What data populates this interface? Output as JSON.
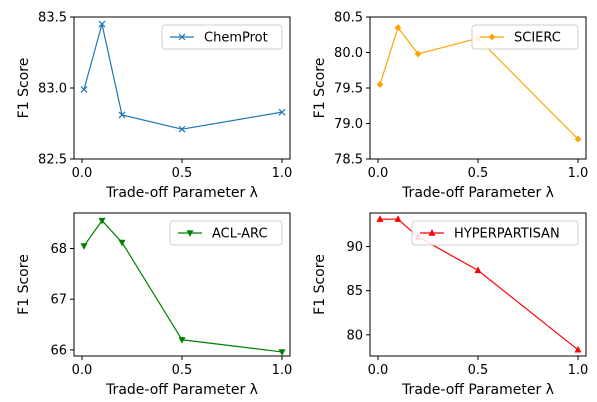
{
  "chart_data": [
    {
      "type": "line",
      "x": [
        0.01,
        0.1,
        0.2,
        0.5,
        1.0
      ],
      "series": [
        {
          "name": "ChemProt",
          "values": [
            82.99,
            83.45,
            82.81,
            82.71,
            82.83
          ],
          "color": "#1f77b4",
          "marker": "x"
        }
      ],
      "xlabel": "Trade-off Parameter λ",
      "ylabel": "F1 Score",
      "xlim": [
        -0.04,
        1.04
      ],
      "ylim": [
        82.5,
        83.5
      ],
      "xticks": [
        "0.0",
        "0.5",
        "1.0"
      ],
      "yticks": [
        "82.5",
        "83.0",
        "83.5"
      ],
      "grid": false,
      "legend": "top-right"
    },
    {
      "type": "line",
      "x": [
        0.01,
        0.1,
        0.2,
        0.5,
        1.0
      ],
      "series": [
        {
          "name": "SCIERC",
          "values": [
            79.55,
            80.35,
            79.98,
            80.2,
            78.78
          ],
          "color": "#ffa500",
          "marker": "diamond"
        }
      ],
      "xlabel": "Trade-off Parameter λ",
      "ylabel": "F1 Score",
      "xlim": [
        -0.04,
        1.04
      ],
      "ylim": [
        78.5,
        80.5
      ],
      "xticks": [
        "0.0",
        "0.5",
        "1.0"
      ],
      "yticks": [
        "78.5",
        "79.0",
        "79.5",
        "80.0",
        "80.5"
      ],
      "grid": false,
      "legend": "top-right"
    },
    {
      "type": "line",
      "x": [
        0.01,
        0.1,
        0.2,
        0.5,
        1.0
      ],
      "series": [
        {
          "name": "ACL-ARC",
          "values": [
            68.05,
            68.55,
            68.12,
            66.2,
            65.96
          ],
          "color": "#008000",
          "marker": "triangle-down"
        }
      ],
      "xlabel": "Trade-off Parameter λ",
      "ylabel": "F1 Score",
      "xlim": [
        -0.04,
        1.04
      ],
      "ylim": [
        65.88,
        68.7
      ],
      "xticks": [
        "0.0",
        "0.5",
        "1.0"
      ],
      "yticks": [
        "66",
        "67",
        "68"
      ],
      "grid": false,
      "legend": "top-right"
    },
    {
      "type": "line",
      "x": [
        0.01,
        0.1,
        0.2,
        0.5,
        1.0
      ],
      "series": [
        {
          "name": "HYPERPARTISAN",
          "values": [
            93.1,
            93.1,
            91.1,
            87.3,
            78.3
          ],
          "color": "#ff0000",
          "marker": "triangle-up"
        }
      ],
      "xlabel": "Trade-off Parameter λ",
      "ylabel": "F1 Score",
      "xlim": [
        -0.04,
        1.04
      ],
      "ylim": [
        77.6,
        93.8
      ],
      "xticks": [
        "0.0",
        "0.5",
        "1.0"
      ],
      "yticks": [
        "80",
        "85",
        "90"
      ],
      "grid": false,
      "legend": "top-right"
    }
  ]
}
